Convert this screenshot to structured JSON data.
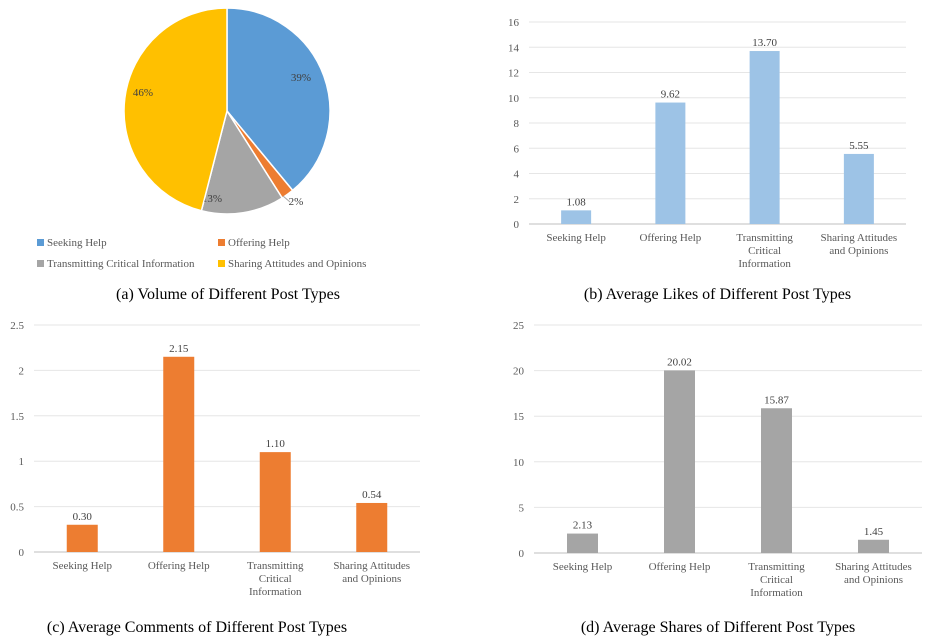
{
  "categories": [
    "Seeking Help",
    "Offering Help",
    "Transmitting Critical Information",
    "Sharing Attitudes and Opinions"
  ],
  "chart_data": [
    {
      "type": "pie",
      "title": "(a) Volume of Different Post Types",
      "labels": [
        "Seeking Help",
        "Offering Help",
        "Transmitting Critical Information",
        "Sharing Attitudes and Opinions"
      ],
      "values": [
        39,
        2,
        13,
        46
      ],
      "value_labels": [
        "39%",
        "2%",
        "13%",
        "46%"
      ],
      "colors": [
        "#5B9BD5",
        "#ED7D31",
        "#A5A5A5",
        "#FFC000"
      ],
      "legend": "bottom"
    },
    {
      "type": "bar",
      "title": "(b) Average Likes of Different Post Types",
      "categories": [
        "Seeking Help",
        "Offering Help",
        "Transmitting Critical Information",
        "Sharing Attitudes and Opinions"
      ],
      "values": [
        1.08,
        9.62,
        13.7,
        5.55
      ],
      "value_labels": [
        "1.08",
        "9.62",
        "13.70",
        "5.55"
      ],
      "ylim": [
        0,
        16
      ],
      "yticks": [
        "0",
        "2",
        "4",
        "6",
        "8",
        "10",
        "12",
        "14",
        "16"
      ],
      "color": "#9DC3E6",
      "grid": true
    },
    {
      "type": "bar",
      "title": "(c) Average Comments of Different Post Types",
      "categories": [
        "Seeking Help",
        "Offering Help",
        "Transmitting Critical Information",
        "Sharing Attitudes and Opinions"
      ],
      "values": [
        0.3,
        2.15,
        1.1,
        0.54
      ],
      "value_labels": [
        "0.30",
        "2.15",
        "1.10",
        "0.54"
      ],
      "ylim": [
        0,
        2.5
      ],
      "yticks": [
        "0",
        "0.5",
        "1",
        "1.5",
        "2",
        "2.5"
      ],
      "color": "#ED7D31",
      "grid": true
    },
    {
      "type": "bar",
      "title": "(d) Average Shares of Different Post Types",
      "categories": [
        "Seeking Help",
        "Offering Help",
        "Transmitting Critical Information",
        "Sharing Attitudes and Opinions"
      ],
      "values": [
        2.13,
        20.02,
        15.87,
        1.45
      ],
      "value_labels": [
        "2.13",
        "20.02",
        "15.87",
        "1.45"
      ],
      "ylim": [
        0,
        25
      ],
      "yticks": [
        "0",
        "5",
        "10",
        "15",
        "20",
        "25"
      ],
      "color": "#A5A5A5",
      "grid": true
    }
  ]
}
